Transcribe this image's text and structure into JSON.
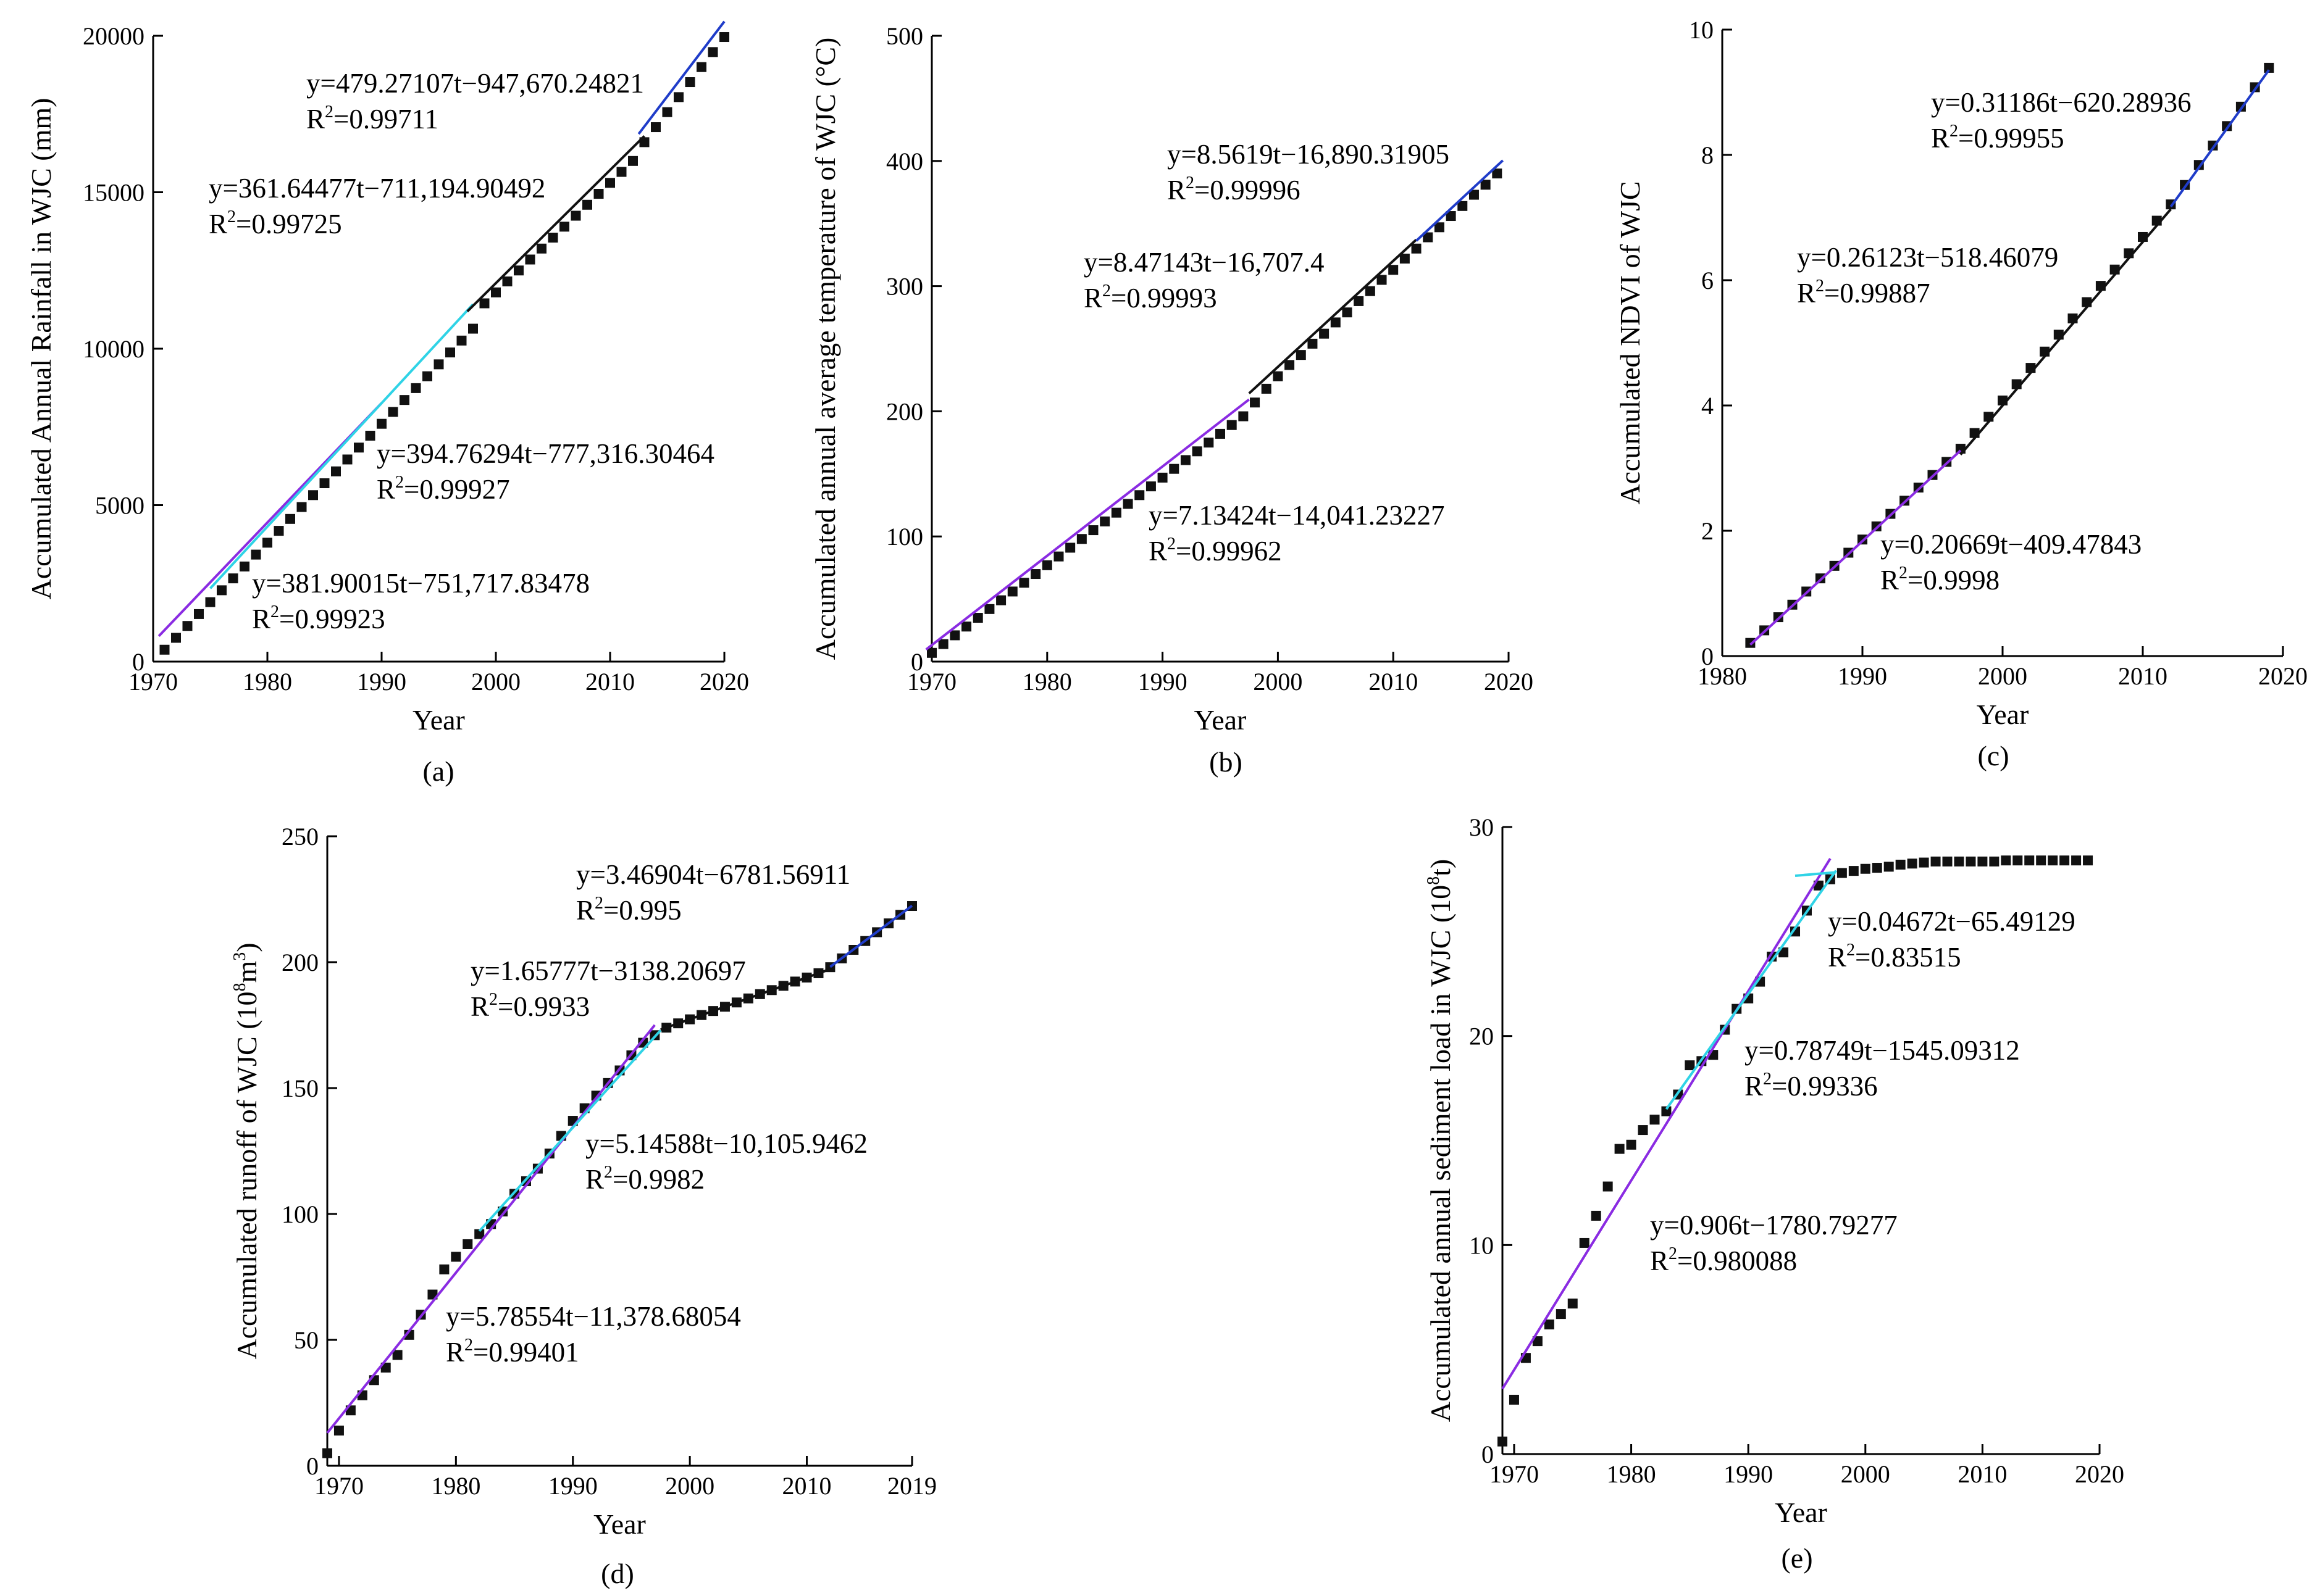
{
  "colors": {
    "points": "#111111",
    "series_line_1": "#8a2be2",
    "series_line_2": "#2fd3e6",
    "series_line_3": "#111111",
    "series_line_4": "#1f3cc9",
    "axis": "#000000"
  },
  "chart_data": [
    {
      "panel": "a",
      "caption": "(a)",
      "type": "scatter",
      "title": "",
      "xlabel": "Year",
      "ylabel": "Accumulated Annual Rainfall in WJC (mm)",
      "xlim": [
        1970,
        2020
      ],
      "ylim": [
        0,
        20000
      ],
      "xticks": [
        "1970",
        "1980",
        "1990",
        "2000",
        "2010",
        "2020"
      ],
      "yticks": [
        "0",
        "5000",
        "10000",
        "15000",
        "20000"
      ],
      "points": [
        [
          1971,
          380
        ],
        [
          1972,
          760
        ],
        [
          1973,
          1140
        ],
        [
          1974,
          1520
        ],
        [
          1975,
          1900
        ],
        [
          1976,
          2280
        ],
        [
          1977,
          2660
        ],
        [
          1978,
          3040
        ],
        [
          1979,
          3420
        ],
        [
          1980,
          3800
        ],
        [
          1981,
          4180
        ],
        [
          1982,
          4560
        ],
        [
          1983,
          4940
        ],
        [
          1984,
          5320
        ],
        [
          1985,
          5700
        ],
        [
          1986,
          6080
        ],
        [
          1987,
          6460
        ],
        [
          1988,
          6840
        ],
        [
          1989,
          7220
        ],
        [
          1990,
          7600
        ],
        [
          1991,
          7980
        ],
        [
          1992,
          8360
        ],
        [
          1993,
          8740
        ],
        [
          1994,
          9120
        ],
        [
          1995,
          9500
        ],
        [
          1996,
          9880
        ],
        [
          1997,
          10260
        ],
        [
          1998,
          10640
        ],
        [
          1999,
          11450
        ],
        [
          2000,
          11800
        ],
        [
          2001,
          12150
        ],
        [
          2002,
          12500
        ],
        [
          2003,
          12850
        ],
        [
          2004,
          13200
        ],
        [
          2005,
          13550
        ],
        [
          2006,
          13900
        ],
        [
          2007,
          14250
        ],
        [
          2008,
          14600
        ],
        [
          2009,
          14950
        ],
        [
          2010,
          15300
        ],
        [
          2011,
          15650
        ],
        [
          2012,
          16000
        ],
        [
          2013,
          16600
        ],
        [
          2014,
          17080
        ],
        [
          2015,
          17560
        ],
        [
          2016,
          18040
        ],
        [
          2017,
          18520
        ],
        [
          2018,
          19000
        ],
        [
          2019,
          19480
        ],
        [
          2020,
          19960
        ]
      ],
      "series": [
        {
          "name": "y=381.90015t−751,717.83478",
          "r2": "=0.99923",
          "slope": 381.90015,
          "intercept": -751717.83478,
          "range": [
            1970.5,
            1990.0
          ]
        },
        {
          "name": "y=394.76294t−777,316.30464",
          "r2": "=0.99927",
          "slope": 394.76294,
          "intercept": -777316.30464,
          "range": [
            1975.0,
            1998.0
          ]
        },
        {
          "name": "y=361.64477t−711,194.90492",
          "r2": "=0.99725",
          "slope": 361.64477,
          "intercept": -711194.90492,
          "range": [
            1997.5,
            2013.0
          ]
        },
        {
          "name": "y=479.27107t−947,670.24821",
          "r2": "=0.99711",
          "slope": 479.27107,
          "intercept": -947670.24821,
          "range": [
            2012.5,
            2020.0
          ]
        }
      ]
    },
    {
      "panel": "b",
      "caption": "(b)",
      "type": "scatter",
      "title": "",
      "xlabel": "Year",
      "ylabel": "Accumulated annual average temperature of WJC (°C)",
      "xlim": [
        1970,
        2020
      ],
      "ylim": [
        0,
        500
      ],
      "xticks": [
        "1970",
        "1980",
        "1990",
        "2000",
        "2010",
        "2020"
      ],
      "yticks": [
        "0",
        "100",
        "200",
        "300",
        "400",
        "500"
      ],
      "points": [
        [
          1970,
          7
        ],
        [
          1971,
          14
        ],
        [
          1972,
          21
        ],
        [
          1973,
          28
        ],
        [
          1974,
          35
        ],
        [
          1975,
          42
        ],
        [
          1976,
          49
        ],
        [
          1977,
          56
        ],
        [
          1978,
          63
        ],
        [
          1979,
          70
        ],
        [
          1980,
          77
        ],
        [
          1981,
          84
        ],
        [
          1982,
          91
        ],
        [
          1983,
          98
        ],
        [
          1984,
          105
        ],
        [
          1985,
          112
        ],
        [
          1986,
          119
        ],
        [
          1987,
          126
        ],
        [
          1988,
          133
        ],
        [
          1989,
          140
        ],
        [
          1990,
          147
        ],
        [
          1991,
          154
        ],
        [
          1992,
          161
        ],
        [
          1993,
          168
        ],
        [
          1994,
          175
        ],
        [
          1995,
          182
        ],
        [
          1996,
          189
        ],
        [
          1997,
          196
        ],
        [
          1998,
          207
        ],
        [
          1999,
          218
        ],
        [
          2000,
          228
        ],
        [
          2001,
          237
        ],
        [
          2002,
          245
        ],
        [
          2003,
          254
        ],
        [
          2004,
          262
        ],
        [
          2005,
          271
        ],
        [
          2006,
          279
        ],
        [
          2007,
          288
        ],
        [
          2008,
          296
        ],
        [
          2009,
          305
        ],
        [
          2010,
          313
        ],
        [
          2011,
          322
        ],
        [
          2012,
          330
        ],
        [
          2013,
          339
        ],
        [
          2014,
          347
        ],
        [
          2015,
          356
        ],
        [
          2016,
          364
        ],
        [
          2017,
          373
        ],
        [
          2018,
          381
        ],
        [
          2019,
          390
        ]
      ],
      "series": [
        {
          "name": "y=7.13424t−14,041.23227",
          "r2": "=0.99962",
          "slope": 7.13424,
          "intercept": -14041.23227,
          "range": [
            1969.5,
            1997.5
          ]
        },
        {
          "name": "y=8.47143t−16,707.4",
          "r2": "=0.99993",
          "slope": 8.47143,
          "intercept": -16707.4,
          "range": [
            1997.5,
            2012.0
          ]
        },
        {
          "name": "y=8.5619t−16,890.31905",
          "r2": "=0.99996",
          "slope": 8.5619,
          "intercept": -16890.31905,
          "range": [
            2012.0,
            2019.5
          ]
        }
      ]
    },
    {
      "panel": "c",
      "caption": "(c)",
      "type": "scatter",
      "title": "",
      "xlabel": "Year",
      "ylabel": "Accumulated NDVI of WJC",
      "xlim": [
        1980,
        2020
      ],
      "ylim": [
        0,
        10
      ],
      "xticks": [
        "1980",
        "1990",
        "2000",
        "2010",
        "2020"
      ],
      "yticks": [
        "0",
        "2",
        "4",
        "6",
        "8",
        "10"
      ],
      "points": [
        [
          1982,
          0.21
        ],
        [
          1983,
          0.41
        ],
        [
          1984,
          0.62
        ],
        [
          1985,
          0.82
        ],
        [
          1986,
          1.03
        ],
        [
          1987,
          1.24
        ],
        [
          1988,
          1.44
        ],
        [
          1989,
          1.65
        ],
        [
          1990,
          1.86
        ],
        [
          1991,
          2.07
        ],
        [
          1992,
          2.27
        ],
        [
          1993,
          2.48
        ],
        [
          1994,
          2.69
        ],
        [
          1995,
          2.89
        ],
        [
          1996,
          3.1
        ],
        [
          1997,
          3.31
        ],
        [
          1998,
          3.56
        ],
        [
          1999,
          3.82
        ],
        [
          2000,
          4.08
        ],
        [
          2001,
          4.34
        ],
        [
          2002,
          4.6
        ],
        [
          2003,
          4.86
        ],
        [
          2004,
          5.13
        ],
        [
          2005,
          5.39
        ],
        [
          2006,
          5.65
        ],
        [
          2007,
          5.91
        ],
        [
          2008,
          6.17
        ],
        [
          2009,
          6.43
        ],
        [
          2010,
          6.69
        ],
        [
          2011,
          6.95
        ],
        [
          2012,
          7.21
        ],
        [
          2013,
          7.52
        ],
        [
          2014,
          7.84
        ],
        [
          2015,
          8.15
        ],
        [
          2016,
          8.46
        ],
        [
          2017,
          8.77
        ],
        [
          2018,
          9.08
        ],
        [
          2019,
          9.39
        ]
      ],
      "series": [
        {
          "name": "y=0.20669t−409.47843",
          "r2": "=0.9998",
          "slope": 0.20669,
          "intercept": -409.47843,
          "range": [
            1982.0,
            1997.0
          ]
        },
        {
          "name": "y=0.26123t−518.46079",
          "r2": "=0.99887",
          "slope": 0.26123,
          "intercept": -518.46079,
          "range": [
            1997.0,
            2012.0
          ]
        },
        {
          "name": "y=0.31186t−620.28936",
          "r2": "=0.99955",
          "slope": 0.31186,
          "intercept": -620.28936,
          "range": [
            2012.0,
            2019.0
          ]
        }
      ]
    },
    {
      "panel": "d",
      "caption": "(d)",
      "type": "scatter",
      "title": "",
      "xlabel": "Year",
      "ylabel": "Accumulated runoff of WJC (10",
      "ylabel_sup": "8",
      "ylabel_unit": "m",
      "ylabel_sup2": "3",
      "ylabel_end": ")",
      "xlim": [
        1969,
        2019
      ],
      "ylim": [
        0,
        250
      ],
      "xticks": [
        "1970",
        "1980",
        "1990",
        "2000",
        "2010",
        "2019"
      ],
      "xtick_values": [
        1970,
        1980,
        1990,
        2000,
        2010,
        2019
      ],
      "yticks": [
        "0",
        "50",
        "100",
        "150",
        "200",
        "250"
      ],
      "points": [
        [
          1969,
          5
        ],
        [
          1970,
          14
        ],
        [
          1971,
          22
        ],
        [
          1972,
          28
        ],
        [
          1973,
          34
        ],
        [
          1974,
          39
        ],
        [
          1975,
          44
        ],
        [
          1976,
          52
        ],
        [
          1977,
          60
        ],
        [
          1978,
          68
        ],
        [
          1979,
          78
        ],
        [
          1980,
          83
        ],
        [
          1981,
          88
        ],
        [
          1982,
          92
        ],
        [
          1983,
          96
        ],
        [
          1984,
          101
        ],
        [
          1985,
          108
        ],
        [
          1986,
          113
        ],
        [
          1987,
          118
        ],
        [
          1988,
          124
        ],
        [
          1989,
          131
        ],
        [
          1990,
          137
        ],
        [
          1991,
          142
        ],
        [
          1992,
          147
        ],
        [
          1993,
          152
        ],
        [
          1994,
          157
        ],
        [
          1995,
          163
        ],
        [
          1996,
          168
        ],
        [
          1997,
          171
        ],
        [
          1998,
          174
        ],
        [
          1999,
          175.7
        ],
        [
          2000,
          177.3
        ],
        [
          2001,
          179
        ],
        [
          2002,
          180.6
        ],
        [
          2003,
          182.3
        ],
        [
          2004,
          184
        ],
        [
          2005,
          185.6
        ],
        [
          2006,
          187.3
        ],
        [
          2007,
          188.9
        ],
        [
          2008,
          190.6
        ],
        [
          2009,
          192.3
        ],
        [
          2010,
          193.9
        ],
        [
          2011,
          195.6
        ],
        [
          2012,
          198
        ],
        [
          2013,
          201.5
        ],
        [
          2014,
          204.9
        ],
        [
          2015,
          208.4
        ],
        [
          2016,
          211.9
        ],
        [
          2017,
          215.4
        ],
        [
          2018,
          218.8
        ],
        [
          2019,
          222.3
        ]
      ],
      "series": [
        {
          "name": "y=5.78554t−11,378.68054",
          "r2": "=0.99401",
          "slope": 5.78554,
          "intercept": -11378.68054,
          "range": [
            1969.0,
            1997.0
          ]
        },
        {
          "name": "y=5.14588t−10,105.9462",
          "r2": "=0.9982",
          "slope": 5.14588,
          "intercept": -10105.9462,
          "range": [
            1982.0,
            1997.5
          ]
        },
        {
          "name": "y=1.65777t−3138.20697",
          "r2": "=0.9933",
          "slope": 1.65777,
          "intercept": -3138.20697,
          "range": [
            1997.5,
            2012.0
          ]
        },
        {
          "name": "y=3.46904t−6781.56911",
          "r2": "=0.995",
          "slope": 3.46904,
          "intercept": -6781.56911,
          "range": [
            2012.0,
            2019.0
          ]
        }
      ]
    },
    {
      "panel": "e",
      "caption": "(e)",
      "type": "scatter",
      "title": "",
      "xlabel": "Year",
      "ylabel": "Accumulated annual sediment load in WJC (10",
      "ylabel_sup": "8",
      "ylabel_unit": "t)",
      "xlim": [
        1969,
        2020
      ],
      "ylim": [
        0,
        30
      ],
      "xticks": [
        "1970",
        "1980",
        "1990",
        "2000",
        "2010",
        "2020"
      ],
      "xtick_values": [
        1970,
        1980,
        1990,
        2000,
        2010,
        2020
      ],
      "yticks": [
        "0",
        "10",
        "20",
        "30"
      ],
      "points": [
        [
          1969,
          0.6
        ],
        [
          1970,
          2.6
        ],
        [
          1971,
          4.6
        ],
        [
          1972,
          5.4
        ],
        [
          1973,
          6.2
        ],
        [
          1974,
          6.7
        ],
        [
          1975,
          7.2
        ],
        [
          1976,
          10.1
        ],
        [
          1977,
          11.4
        ],
        [
          1978,
          12.8
        ],
        [
          1979,
          14.6
        ],
        [
          1980,
          14.8
        ],
        [
          1981,
          15.5
        ],
        [
          1982,
          16
        ],
        [
          1983,
          16.4
        ],
        [
          1984,
          17.2
        ],
        [
          1985,
          18.6
        ],
        [
          1986,
          18.8
        ],
        [
          1987,
          19.1
        ],
        [
          1988,
          20.3
        ],
        [
          1989,
          21.3
        ],
        [
          1990,
          21.8
        ],
        [
          1991,
          22.6
        ],
        [
          1992,
          23.8
        ],
        [
          1993,
          24
        ],
        [
          1994,
          25
        ],
        [
          1995,
          26
        ],
        [
          1996,
          27.2
        ],
        [
          1997,
          27.5
        ],
        [
          1998,
          27.8
        ],
        [
          1999,
          27.9
        ],
        [
          2000,
          28
        ],
        [
          2001,
          28.05
        ],
        [
          2002,
          28.1
        ],
        [
          2003,
          28.2
        ],
        [
          2004,
          28.25
        ],
        [
          2005,
          28.3
        ],
        [
          2006,
          28.35
        ],
        [
          2007,
          28.35
        ],
        [
          2008,
          28.35
        ],
        [
          2009,
          28.35
        ],
        [
          2010,
          28.35
        ],
        [
          2011,
          28.35
        ],
        [
          2012,
          28.4
        ],
        [
          2013,
          28.4
        ],
        [
          2014,
          28.4
        ],
        [
          2015,
          28.4
        ],
        [
          2016,
          28.4
        ],
        [
          2017,
          28.4
        ],
        [
          2018,
          28.4
        ],
        [
          2019,
          28.4
        ]
      ],
      "series": [
        {
          "name": "y=0.906t−1780.79277",
          "r2": "=0.980088",
          "slope": 0.906,
          "intercept": -1780.79277,
          "range": [
            1969.0,
            1997.0
          ]
        },
        {
          "name": "y=0.78749t−1545.09312",
          "r2": "=0.99336",
          "slope": 0.78749,
          "intercept": -1545.09312,
          "range": [
            1983.0,
            1997.5
          ]
        },
        {
          "name": "y=0.04672t−65.49129",
          "r2": "=0.83515",
          "slope": 0.04672,
          "intercept": -65.49129,
          "range": [
            1994.0,
            1997.5
          ]
        }
      ]
    }
  ]
}
